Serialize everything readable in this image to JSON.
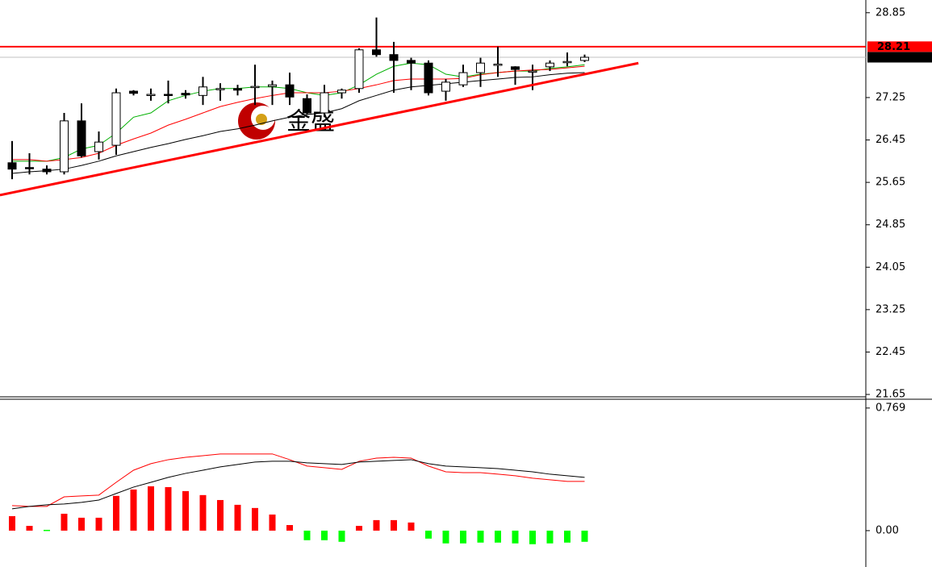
{
  "chart_data": [
    {
      "type": "candlestick",
      "open": [
        26.02,
        25.93,
        25.9,
        25.85,
        26.81,
        26.23,
        26.35,
        27.37,
        27.31,
        27.31,
        27.33,
        27.29,
        27.42,
        27.42,
        27.46,
        27.46,
        27.49,
        27.23,
        26.96,
        27.34,
        27.42,
        28.15,
        28.06,
        27.95,
        27.9,
        27.37,
        27.49,
        27.72,
        27.87,
        27.83,
        27.75,
        27.83,
        27.93,
        27.95
      ],
      "high": [
        26.43,
        26.2,
        25.97,
        26.96,
        27.14,
        26.61,
        27.42,
        27.39,
        27.42,
        27.57,
        27.39,
        27.64,
        27.52,
        27.49,
        27.87,
        27.57,
        27.72,
        27.31,
        27.49,
        27.42,
        28.18,
        28.76,
        28.3,
        28.0,
        27.95,
        27.6,
        27.87,
        28.0,
        28.21,
        27.84,
        27.87,
        27.95,
        28.1,
        28.06
      ],
      "low": [
        25.71,
        25.8,
        25.8,
        25.8,
        26.12,
        26.08,
        26.17,
        27.29,
        27.19,
        27.14,
        27.23,
        27.11,
        27.19,
        27.29,
        27.11,
        27.11,
        27.11,
        26.93,
        26.88,
        27.23,
        27.34,
        28.02,
        27.34,
        27.39,
        27.29,
        27.19,
        27.45,
        27.45,
        27.64,
        27.49,
        27.39,
        27.75,
        27.84,
        27.92
      ],
      "close": [
        25.9,
        25.91,
        25.85,
        26.81,
        26.15,
        26.41,
        27.34,
        27.33,
        27.31,
        27.29,
        27.3,
        27.45,
        27.42,
        27.39,
        27.46,
        27.49,
        27.26,
        26.96,
        27.34,
        27.39,
        28.15,
        28.06,
        27.95,
        27.9,
        27.34,
        27.54,
        27.72,
        27.9,
        27.88,
        27.78,
        27.75,
        27.9,
        27.93,
        28.01
      ],
      "up_color": "#ffffff",
      "down_color": "#000000",
      "series": [
        {
          "color": "#00b000",
          "values": [
            26.05,
            26.05,
            26.05,
            26.12,
            26.28,
            26.35,
            26.58,
            26.88,
            26.96,
            27.19,
            27.29,
            27.37,
            27.42,
            27.42,
            27.45,
            27.45,
            27.42,
            27.34,
            27.29,
            27.34,
            27.49,
            27.69,
            27.84,
            27.9,
            27.87,
            27.69,
            27.64,
            27.69,
            27.72,
            27.75,
            27.75,
            27.8,
            27.83,
            27.87
          ]
        },
        {
          "color": "#ff0000",
          "values": [
            26.08,
            26.08,
            26.05,
            26.08,
            26.12,
            26.2,
            26.35,
            26.47,
            26.58,
            26.73,
            26.84,
            26.96,
            27.08,
            27.16,
            27.23,
            27.29,
            27.34,
            27.34,
            27.34,
            27.37,
            27.42,
            27.49,
            27.57,
            27.6,
            27.6,
            27.6,
            27.61,
            27.68,
            27.72,
            27.75,
            27.77,
            27.78,
            27.81,
            27.84
          ]
        },
        {
          "color": "#000000",
          "values": [
            25.82,
            25.85,
            25.87,
            25.9,
            25.97,
            26.05,
            26.15,
            26.23,
            26.31,
            26.38,
            26.46,
            26.53,
            26.61,
            26.66,
            26.73,
            26.81,
            26.88,
            26.93,
            26.96,
            27.04,
            27.19,
            27.29,
            27.39,
            27.45,
            27.48,
            27.51,
            27.54,
            27.57,
            27.6,
            27.63,
            27.64,
            27.68,
            27.71,
            27.72
          ]
        }
      ],
      "levels": [
        {
          "value": 28.21,
          "color": "#ff0000",
          "label_bg": "#ff0000"
        },
        {
          "value": 28.01,
          "color": "#c0c0c0",
          "label_bg": "#000000"
        }
      ],
      "trendline": {
        "x": [
          -0.7,
          36.1
        ],
        "y": [
          25.41,
          27.9
        ],
        "color": "#ff0000"
      },
      "ylim": [
        21.59,
        29.09
      ],
      "yticks": [
        21.65,
        22.45,
        23.25,
        24.05,
        24.85,
        25.65,
        26.45,
        27.25,
        28.85
      ]
    },
    {
      "type": "macd",
      "values": [
        0.091,
        0.03,
        0.005,
        0.106,
        0.081,
        0.081,
        0.218,
        0.258,
        0.278,
        0.273,
        0.248,
        0.223,
        0.192,
        0.162,
        0.142,
        0.101,
        0.035,
        -0.06,
        -0.06,
        -0.07,
        0.03,
        0.066,
        0.066,
        0.051,
        -0.05,
        -0.08,
        -0.08,
        -0.075,
        -0.075,
        -0.08,
        -0.085,
        -0.08,
        -0.075,
        -0.07
      ],
      "value_colors": [
        "#ff0000",
        "#ff0000",
        "#00ff00",
        "#ff0000",
        "#ff0000",
        "#ff0000",
        "#ff0000",
        "#ff0000",
        "#ff0000",
        "#ff0000",
        "#ff0000",
        "#ff0000",
        "#ff0000",
        "#ff0000",
        "#ff0000",
        "#ff0000",
        "#ff0000",
        "#00ff00",
        "#00ff00",
        "#00ff00",
        "#ff0000",
        "#ff0000",
        "#ff0000",
        "#ff0000",
        "#00ff00",
        "#00ff00",
        "#00ff00",
        "#00ff00",
        "#00ff00",
        "#00ff00",
        "#00ff00",
        "#00ff00",
        "#00ff00",
        "#00ff00"
      ],
      "series": [
        {
          "color": "#ff0000",
          "values": [
            0.157,
            0.152,
            0.152,
            0.212,
            0.218,
            0.223,
            0.303,
            0.379,
            0.42,
            0.445,
            0.46,
            0.47,
            0.481,
            0.481,
            0.481,
            0.481,
            0.445,
            0.405,
            0.395,
            0.384,
            0.435,
            0.455,
            0.46,
            0.455,
            0.405,
            0.369,
            0.364,
            0.364,
            0.354,
            0.344,
            0.329,
            0.319,
            0.309,
            0.309
          ]
        },
        {
          "color": "#000000",
          "values": [
            0.137,
            0.152,
            0.162,
            0.167,
            0.177,
            0.192,
            0.233,
            0.273,
            0.303,
            0.334,
            0.359,
            0.379,
            0.4,
            0.415,
            0.43,
            0.435,
            0.435,
            0.425,
            0.42,
            0.415,
            0.43,
            0.435,
            0.44,
            0.445,
            0.42,
            0.405,
            0.4,
            0.395,
            0.389,
            0.379,
            0.369,
            0.354,
            0.344,
            0.334
          ]
        }
      ],
      "ylim": [
        -0.228,
        0.819
      ],
      "yticks": [
        {
          "value": 0,
          "label": "0.00"
        },
        0.769
      ]
    }
  ],
  "watermark": "金盛"
}
